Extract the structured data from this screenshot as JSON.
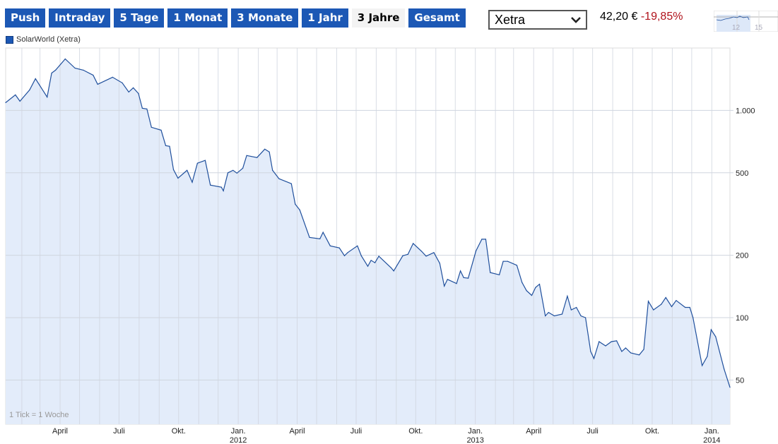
{
  "tabs": [
    {
      "label": "Push",
      "active": false
    },
    {
      "label": "Intraday",
      "active": false
    },
    {
      "label": "5 Tage",
      "active": false
    },
    {
      "label": "1 Monat",
      "active": false
    },
    {
      "label": "3 Monate",
      "active": false
    },
    {
      "label": "1 Jahr",
      "active": false
    },
    {
      "label": "3 Jahre",
      "active": true
    },
    {
      "label": "Gesamt",
      "active": false
    }
  ],
  "exchange_select": {
    "value": "Xetra",
    "icon": "chevron-down-icon"
  },
  "quote": {
    "price": "42,20 €",
    "change": "-19,85%",
    "change_color": "#b0121b"
  },
  "mini_overview": {
    "labels": [
      "12",
      "15"
    ]
  },
  "colors": {
    "accent": "#1c58b5",
    "line": "#1f4f9c",
    "fill": "#e3ecfa",
    "grid": "#d9d9d9"
  },
  "chart_data": {
    "type": "area",
    "legend": [
      {
        "name": "SolarWorld (Xetra)",
        "color": "#1c58b5"
      }
    ],
    "legend_placement": "top-left",
    "annotation": "1 Tick = 1 Woche",
    "y_scale": "log",
    "ylim": [
      30.6,
      2000
    ],
    "xlim": [
      "2011-01-07",
      "2014-01-29"
    ],
    "grid": true,
    "y_ticks": [
      {
        "value": 1000,
        "label": "1.000"
      },
      {
        "value": 500,
        "label": "500"
      },
      {
        "value": 200,
        "label": "200"
      },
      {
        "value": 100,
        "label": "100"
      },
      {
        "value": 50,
        "label": "50"
      }
    ],
    "x_ticks": [
      {
        "date": "2011-04-01",
        "label": "April",
        "year": ""
      },
      {
        "date": "2011-07-01",
        "label": "Juli",
        "year": ""
      },
      {
        "date": "2011-10-01",
        "label": "Okt.",
        "year": ""
      },
      {
        "date": "2012-01-01",
        "label": "Jan.",
        "year": "2012"
      },
      {
        "date": "2012-04-01",
        "label": "April",
        "year": ""
      },
      {
        "date": "2012-07-01",
        "label": "Juli",
        "year": ""
      },
      {
        "date": "2012-10-01",
        "label": "Okt.",
        "year": ""
      },
      {
        "date": "2013-01-01",
        "label": "Jan.",
        "year": "2013"
      },
      {
        "date": "2013-04-01",
        "label": "April",
        "year": ""
      },
      {
        "date": "2013-07-01",
        "label": "Juli",
        "year": ""
      },
      {
        "date": "2013-10-01",
        "label": "Okt.",
        "year": ""
      },
      {
        "date": "2014-01-01",
        "label": "Jan.",
        "year": "2014"
      }
    ],
    "series": [
      {
        "name": "SolarWorld (Xetra)",
        "points": [
          [
            "2011-01-07",
            1090
          ],
          [
            "2011-01-22",
            1188
          ],
          [
            "2011-01-29",
            1107
          ],
          [
            "2011-02-13",
            1255
          ],
          [
            "2011-02-22",
            1422
          ],
          [
            "2011-03-12",
            1160
          ],
          [
            "2011-03-19",
            1514
          ],
          [
            "2011-03-25",
            1563
          ],
          [
            "2011-04-09",
            1771
          ],
          [
            "2011-04-24",
            1600
          ],
          [
            "2011-05-07",
            1563
          ],
          [
            "2011-05-22",
            1479
          ],
          [
            "2011-05-29",
            1336
          ],
          [
            "2011-06-21",
            1445
          ],
          [
            "2011-07-06",
            1358
          ],
          [
            "2011-07-16",
            1226
          ],
          [
            "2011-07-23",
            1285
          ],
          [
            "2011-07-31",
            1207
          ],
          [
            "2011-08-06",
            1024
          ],
          [
            "2011-08-13",
            1016
          ],
          [
            "2011-08-20",
            829
          ],
          [
            "2011-09-04",
            803
          ],
          [
            "2011-09-11",
            676
          ],
          [
            "2011-09-17",
            671
          ],
          [
            "2011-09-23",
            518
          ],
          [
            "2011-09-30",
            471
          ],
          [
            "2011-10-14",
            514
          ],
          [
            "2011-10-22",
            450
          ],
          [
            "2011-10-30",
            556
          ],
          [
            "2011-11-11",
            574
          ],
          [
            "2011-11-19",
            436
          ],
          [
            "2011-12-06",
            426
          ],
          [
            "2011-12-09",
            409
          ],
          [
            "2011-12-16",
            500
          ],
          [
            "2011-12-24",
            514
          ],
          [
            "2011-12-30",
            498
          ],
          [
            "2012-01-08",
            526
          ],
          [
            "2012-01-14",
            606
          ],
          [
            "2012-01-30",
            592
          ],
          [
            "2012-02-11",
            650
          ],
          [
            "2012-02-18",
            630
          ],
          [
            "2012-02-23",
            514
          ],
          [
            "2012-03-04",
            468
          ],
          [
            "2012-03-23",
            443
          ],
          [
            "2012-03-29",
            353
          ],
          [
            "2012-04-05",
            331
          ],
          [
            "2012-04-20",
            244
          ],
          [
            "2012-05-06",
            240
          ],
          [
            "2012-05-11",
            258
          ],
          [
            "2012-05-22",
            222
          ],
          [
            "2012-06-05",
            217
          ],
          [
            "2012-06-13",
            199
          ],
          [
            "2012-06-18",
            206
          ],
          [
            "2012-07-03",
            222
          ],
          [
            "2012-07-09",
            199
          ],
          [
            "2012-07-19",
            177
          ],
          [
            "2012-07-24",
            189
          ],
          [
            "2012-07-30",
            184
          ],
          [
            "2012-08-05",
            198
          ],
          [
            "2012-08-24",
            174
          ],
          [
            "2012-08-28",
            168
          ],
          [
            "2012-09-11",
            199
          ],
          [
            "2012-09-19",
            202
          ],
          [
            "2012-09-27",
            228
          ],
          [
            "2012-10-10",
            209
          ],
          [
            "2012-10-17",
            198
          ],
          [
            "2012-10-29",
            206
          ],
          [
            "2012-11-07",
            183
          ],
          [
            "2012-11-14",
            142
          ],
          [
            "2012-11-19",
            153
          ],
          [
            "2012-12-03",
            146
          ],
          [
            "2012-12-09",
            168
          ],
          [
            "2012-12-14",
            156
          ],
          [
            "2012-12-21",
            155
          ],
          [
            "2013-01-02",
            210
          ],
          [
            "2013-01-11",
            239
          ],
          [
            "2013-01-17",
            239
          ],
          [
            "2013-01-24",
            165
          ],
          [
            "2013-02-07",
            161
          ],
          [
            "2013-02-13",
            187
          ],
          [
            "2013-02-20",
            187
          ],
          [
            "2013-03-06",
            179
          ],
          [
            "2013-03-14",
            148
          ],
          [
            "2013-03-21",
            135
          ],
          [
            "2013-03-29",
            128
          ],
          [
            "2013-04-04",
            140
          ],
          [
            "2013-04-10",
            145
          ],
          [
            "2013-04-19",
            102
          ],
          [
            "2013-04-24",
            106
          ],
          [
            "2013-05-03",
            102
          ],
          [
            "2013-05-15",
            104
          ],
          [
            "2013-05-23",
            127
          ],
          [
            "2013-05-29",
            109
          ],
          [
            "2013-06-06",
            112
          ],
          [
            "2013-06-13",
            102
          ],
          [
            "2013-06-20",
            100
          ],
          [
            "2013-06-28",
            68.7
          ],
          [
            "2013-07-03",
            63.5
          ],
          [
            "2013-07-11",
            76.6
          ],
          [
            "2013-07-21",
            73.1
          ],
          [
            "2013-07-30",
            76.6
          ],
          [
            "2013-08-07",
            77.3
          ],
          [
            "2013-08-15",
            68.7
          ],
          [
            "2013-08-21",
            71.4
          ],
          [
            "2013-08-29",
            67.6
          ],
          [
            "2013-09-11",
            66.1
          ],
          [
            "2013-09-18",
            70.3
          ],
          [
            "2013-09-25",
            120
          ],
          [
            "2013-10-03",
            109
          ],
          [
            "2013-10-15",
            116
          ],
          [
            "2013-10-22",
            125
          ],
          [
            "2013-10-31",
            113
          ],
          [
            "2013-11-07",
            121
          ],
          [
            "2013-11-21",
            112
          ],
          [
            "2013-11-28",
            112
          ],
          [
            "2013-12-03",
            100
          ],
          [
            "2013-12-17",
            58.7
          ],
          [
            "2013-12-25",
            65.0
          ],
          [
            "2013-12-31",
            87.5
          ],
          [
            "2014-01-07",
            80.9
          ],
          [
            "2014-01-20",
            56.5
          ],
          [
            "2014-01-29",
            46.1
          ]
        ]
      }
    ]
  }
}
